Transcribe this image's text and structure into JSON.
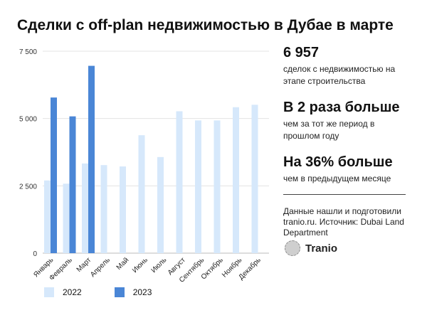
{
  "title": "Сделки с off-plan недвижимостью в Дубае в марте",
  "chart_data": {
    "type": "bar",
    "categories": [
      "Январь",
      "Февраль",
      "Март",
      "Апрель",
      "Май",
      "Июнь",
      "Июль",
      "Август",
      "Сентябрь",
      "Октябрь",
      "Ноябрь",
      "Декабрь"
    ],
    "series": [
      {
        "name": "2022",
        "color": "#d6e8fb",
        "values": [
          2700,
          2580,
          3330,
          3270,
          3220,
          4380,
          3570,
          5270,
          4930,
          4930,
          5420,
          5510
        ]
      },
      {
        "name": "2023",
        "color": "#4a86d6",
        "values": [
          5780,
          5080,
          6957,
          null,
          null,
          null,
          null,
          null,
          null,
          null,
          null,
          null
        ]
      }
    ],
    "ylim": [
      0,
      7500
    ],
    "yticks": [
      0,
      2500,
      5000,
      7500
    ],
    "ytick_labels": [
      "0",
      "2 500",
      "5 000",
      "7 500"
    ],
    "grid": true,
    "legend_position": "bottom-left"
  },
  "side": {
    "stat1_value": "6 957",
    "stat1_text": "сделок с недвижимостью на этапе строительства",
    "stat2_value": "В 2 раза больше",
    "stat2_text": "чем за тот же период в прошлом году",
    "stat3_value": "На 36% больше",
    "stat3_text": "чем в предыдущем месяце",
    "source_text": "Данные нашли и подготовили tranio.ru. Источник: Dubai Land Department",
    "brand": "Tranio"
  }
}
